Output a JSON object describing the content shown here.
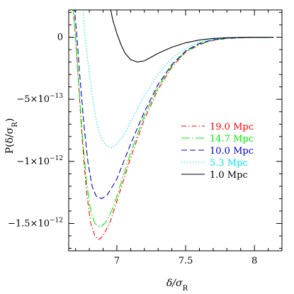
{
  "chart_data": {
    "type": "line",
    "xlabel": "δ/σ_R",
    "ylabel": "P(δ/σ_R)",
    "xlim": [
      6.65,
      8.2
    ],
    "ylim": [
      -1.72e-12,
      2.2e-13
    ],
    "x_ticks": [
      {
        "value": 7,
        "label": "7"
      },
      {
        "value": 7.5,
        "label": "7.5"
      },
      {
        "value": 8,
        "label": "8"
      }
    ],
    "y_ticks": [
      {
        "value": 0,
        "mantissa": "0",
        "exponent": ""
      },
      {
        "value": -5e-13,
        "mantissa": "−5×10",
        "exponent": "−13"
      },
      {
        "value": -1e-12,
        "mantissa": "−1×10",
        "exponent": "−12"
      },
      {
        "value": -1.5e-12,
        "mantissa": "−1.5×10",
        "exponent": "−12"
      }
    ],
    "legend_position": "center-right",
    "series": [
      {
        "name": "19.0 Mpc",
        "color": "#ff0000",
        "dash": "dash-dot",
        "points": [
          [
            6.68,
            2.5e-13
          ],
          [
            6.7,
            0.0
          ],
          [
            6.72,
            -3.5e-13
          ],
          [
            6.75,
            -8.5e-13
          ],
          [
            6.78,
            -1.25e-12
          ],
          [
            6.81,
            -1.5e-12
          ],
          [
            6.84,
            -1.6e-12
          ],
          [
            6.87,
            -1.63e-12
          ],
          [
            6.9,
            -1.6e-12
          ],
          [
            6.95,
            -1.49e-12
          ],
          [
            7.0,
            -1.32e-12
          ],
          [
            7.1,
            -9.7e-13
          ],
          [
            7.2,
            -6.6e-13
          ],
          [
            7.3,
            -4.2e-13
          ],
          [
            7.4,
            -2.4e-13
          ],
          [
            7.5,
            -1.2e-13
          ],
          [
            7.6,
            -6e-14
          ],
          [
            7.7,
            -2.5e-14
          ],
          [
            7.8,
            -1e-14
          ],
          [
            7.9,
            -4e-15
          ],
          [
            8.0,
            -1e-15
          ],
          [
            8.14,
            0.0
          ]
        ]
      },
      {
        "name": "14.7 Mpc",
        "color": "#00ee00",
        "dash": "long-dash-dot",
        "points": [
          [
            6.68,
            2.5e-13
          ],
          [
            6.7,
            0.0
          ],
          [
            6.72,
            -3.3e-13
          ],
          [
            6.75,
            -8e-13
          ],
          [
            6.78,
            -1.17e-12
          ],
          [
            6.81,
            -1.4e-12
          ],
          [
            6.84,
            -1.5e-12
          ],
          [
            6.88,
            -1.53e-12
          ],
          [
            6.92,
            -1.49e-12
          ],
          [
            6.97,
            -1.38e-12
          ],
          [
            7.0,
            -1.28e-12
          ],
          [
            7.1,
            -9.3e-13
          ],
          [
            7.2,
            -6.3e-13
          ],
          [
            7.3,
            -4e-13
          ],
          [
            7.4,
            -2.3e-13
          ],
          [
            7.5,
            -1.15e-13
          ],
          [
            7.6,
            -5.5e-14
          ],
          [
            7.7,
            -2.2e-14
          ],
          [
            7.8,
            -8e-15
          ],
          [
            7.9,
            -3e-15
          ],
          [
            8.0,
            -1e-15
          ],
          [
            8.14,
            0.0
          ]
        ]
      },
      {
        "name": "10.0 Mpc",
        "color": "#0000cc",
        "dash": "dashed",
        "points": [
          [
            6.69,
            2.5e-13
          ],
          [
            6.71,
            0.0
          ],
          [
            6.73,
            -3e-13
          ],
          [
            6.76,
            -7e-13
          ],
          [
            6.79,
            -1.01e-12
          ],
          [
            6.82,
            -1.2e-12
          ],
          [
            6.85,
            -1.28e-12
          ],
          [
            6.89,
            -1.3e-12
          ],
          [
            6.93,
            -1.27e-12
          ],
          [
            6.98,
            -1.18e-12
          ],
          [
            7.0,
            -1.14e-12
          ],
          [
            7.1,
            -8.6e-13
          ],
          [
            7.2,
            -6e-13
          ],
          [
            7.3,
            -3.8e-13
          ],
          [
            7.4,
            -2.2e-13
          ],
          [
            7.5,
            -1.1e-13
          ],
          [
            7.6,
            -5e-14
          ],
          [
            7.7,
            -2e-14
          ],
          [
            7.8,
            -8e-15
          ],
          [
            7.9,
            -3e-15
          ],
          [
            8.0,
            -1e-15
          ],
          [
            8.14,
            0.0
          ]
        ]
      },
      {
        "name": "5.3 Mpc",
        "color": "#00e5ee",
        "dash": "dotted",
        "points": [
          [
            6.75,
            2.5e-13
          ],
          [
            6.77,
            0.0
          ],
          [
            6.79,
            -2e-13
          ],
          [
            6.82,
            -4.6e-13
          ],
          [
            6.85,
            -6.7e-13
          ],
          [
            6.88,
            -8e-13
          ],
          [
            6.92,
            -8.7e-13
          ],
          [
            6.96,
            -8.9e-13
          ],
          [
            7.0,
            -8.6e-13
          ],
          [
            7.05,
            -7.9e-13
          ],
          [
            7.1,
            -6.8e-13
          ],
          [
            7.2,
            -4.7e-13
          ],
          [
            7.3,
            -3e-13
          ],
          [
            7.4,
            -1.7e-13
          ],
          [
            7.5,
            -9e-14
          ],
          [
            7.6,
            -4e-14
          ],
          [
            7.7,
            -1.6e-14
          ],
          [
            7.8,
            -6e-15
          ],
          [
            7.9,
            -2e-15
          ],
          [
            8.0,
            -1e-15
          ],
          [
            8.14,
            0.0
          ]
        ]
      },
      {
        "name": "1.0 Mpc",
        "color": "#000000",
        "dash": "solid",
        "points": [
          [
            6.95,
            2.5e-13
          ],
          [
            6.97,
            1.4e-13
          ],
          [
            7.0,
            3e-14
          ],
          [
            7.03,
            -6e-14
          ],
          [
            7.06,
            -1.3e-13
          ],
          [
            7.1,
            -1.8e-13
          ],
          [
            7.15,
            -2e-13
          ],
          [
            7.2,
            -1.9e-13
          ],
          [
            7.25,
            -1.6e-13
          ],
          [
            7.3,
            -1.3e-13
          ],
          [
            7.4,
            -8e-14
          ],
          [
            7.5,
            -4.5e-14
          ],
          [
            7.6,
            -2.2e-14
          ],
          [
            7.7,
            -1e-14
          ],
          [
            7.8,
            -4e-15
          ],
          [
            7.9,
            -1.5e-15
          ],
          [
            8.0,
            -5e-16
          ],
          [
            8.14,
            0.0
          ]
        ]
      }
    ]
  }
}
